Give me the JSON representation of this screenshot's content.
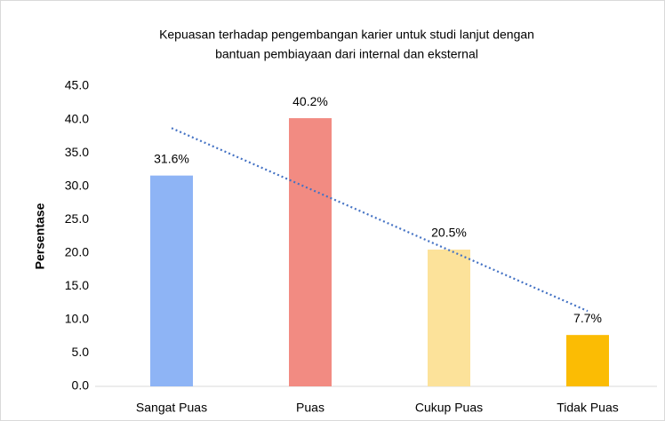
{
  "chart_data": {
    "type": "bar",
    "title": [
      "Kepuasan terhadap pengembangan karier untuk  studi lanjut dengan",
      "bantuan pembiayaan dari internal dan eksternal"
    ],
    "y_label": "Persentase",
    "categories": [
      "Sangat Puas",
      "Puas",
      "Cukup Puas",
      "Tidak Puas"
    ],
    "values": [
      31.6,
      40.2,
      20.5,
      7.7
    ],
    "value_labels": [
      "31.6%",
      "40.2%",
      "20.5%",
      "7.7%"
    ],
    "colors": [
      "#8eb4f5",
      "#f28b82",
      "#fce29a",
      "#fbbc04"
    ],
    "ylim": [
      0,
      45
    ],
    "yticks": [
      {
        "value": 0,
        "label": "0.0"
      },
      {
        "value": 5,
        "label": "5.0"
      },
      {
        "value": 10,
        "label": "10.0"
      },
      {
        "value": 15,
        "label": "15.0"
      },
      {
        "value": 20,
        "label": "20.0"
      },
      {
        "value": 25,
        "label": "25.0"
      },
      {
        "value": 30,
        "label": "30.0"
      },
      {
        "value": 35,
        "label": "35.0"
      },
      {
        "value": 40,
        "label": "40.0"
      },
      {
        "value": 45,
        "label": "45.0"
      }
    ],
    "grid": false,
    "trendline": "linear",
    "trendline_color": "#4472c4"
  }
}
